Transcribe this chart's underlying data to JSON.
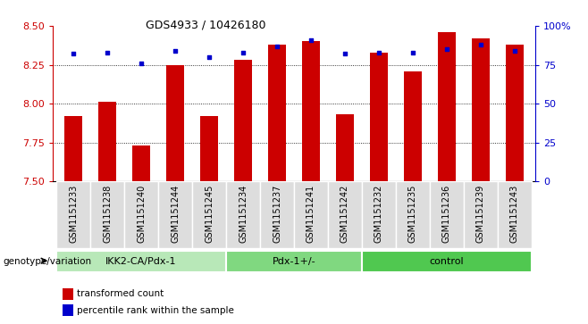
{
  "title": "GDS4933 / 10426180",
  "samples": [
    "GSM1151233",
    "GSM1151238",
    "GSM1151240",
    "GSM1151244",
    "GSM1151245",
    "GSM1151234",
    "GSM1151237",
    "GSM1151241",
    "GSM1151242",
    "GSM1151232",
    "GSM1151235",
    "GSM1151236",
    "GSM1151239",
    "GSM1151243"
  ],
  "red_values": [
    7.92,
    8.01,
    7.73,
    8.25,
    7.92,
    8.28,
    8.38,
    8.4,
    7.93,
    8.33,
    8.21,
    8.46,
    8.42,
    8.38
  ],
  "blue_values": [
    82,
    83,
    76,
    84,
    80,
    83,
    87,
    91,
    82,
    83,
    83,
    85,
    88,
    84
  ],
  "groups": [
    {
      "label": "IKK2-CA/Pdx-1",
      "start": 0,
      "end": 5,
      "color": "#b8e8b8"
    },
    {
      "label": "Pdx-1+/-",
      "start": 5,
      "end": 9,
      "color": "#80d880"
    },
    {
      "label": "control",
      "start": 9,
      "end": 14,
      "color": "#50c850"
    }
  ],
  "ymin": 7.5,
  "ymax": 8.5,
  "yticks": [
    7.5,
    7.75,
    8.0,
    8.25,
    8.5
  ],
  "y2min": 0,
  "y2max": 100,
  "y2ticks": [
    0,
    25,
    50,
    75,
    100
  ],
  "y2ticklabels": [
    "0",
    "25",
    "50",
    "75",
    "100%"
  ],
  "bar_color": "#cc0000",
  "dot_color": "#0000cc",
  "bar_width": 0.55,
  "xlabel_rotation": 90,
  "legend_red": "transformed count",
  "legend_blue": "percentile rank within the sample",
  "genotype_label": "genotype/variation",
  "background_color": "#ffffff",
  "plot_bg": "#ffffff",
  "tick_color_left": "#cc0000",
  "tick_color_right": "#0000cc",
  "grid_dotted_vals": [
    7.75,
    8.0,
    8.25
  ]
}
